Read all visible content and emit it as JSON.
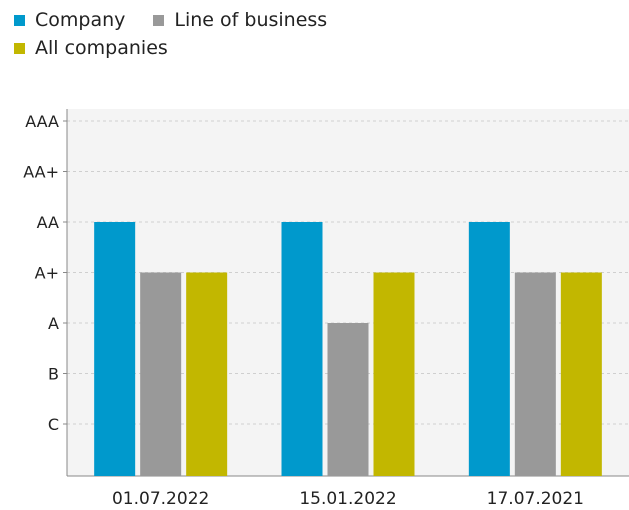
{
  "chart_data": {
    "type": "bar",
    "title": "",
    "xlabel": "",
    "ylabel": "",
    "categories": [
      "01.07.2022",
      "15.01.2022",
      "17.07.2021"
    ],
    "y_scale": [
      "C",
      "B",
      "A",
      "A+",
      "AA",
      "AA+",
      "AAA"
    ],
    "series": [
      {
        "name": "Company",
        "color": "#0099cc",
        "values": [
          "AA",
          "AA",
          "AA"
        ]
      },
      {
        "name": "Line of business",
        "color": "#999999",
        "values": [
          "A+",
          "A",
          "A+"
        ]
      },
      {
        "name": "All companies",
        "color": "#c2b700",
        "values": [
          "A+",
          "A+",
          "A+"
        ]
      }
    ],
    "grid": true,
    "legend_position": "top-left",
    "plot_background": "#f4f4f4"
  }
}
